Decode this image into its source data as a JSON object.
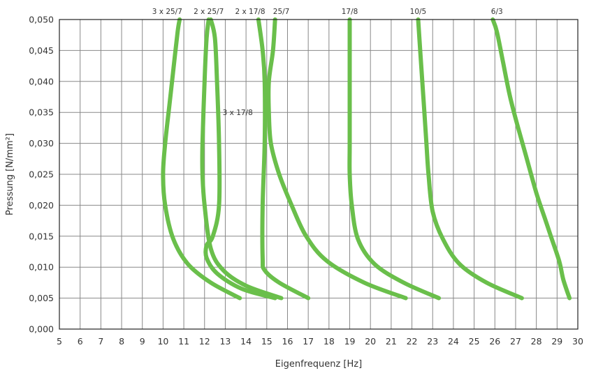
{
  "chart_data": {
    "type": "line",
    "title": "",
    "xlabel": "Eigenfrequenz [Hz]",
    "ylabel": "Pressung [N/mm²]",
    "xlim": [
      5,
      30
    ],
    "ylim": [
      0,
      0.05
    ],
    "x_ticks": [
      5,
      6,
      7,
      8,
      9,
      10,
      11,
      12,
      13,
      14,
      15,
      16,
      17,
      18,
      19,
      20,
      21,
      22,
      23,
      24,
      25,
      26,
      27,
      28,
      29,
      30
    ],
    "x_tick_labels": [
      "5",
      "6",
      "7",
      "8",
      "9",
      "10",
      "11",
      "12",
      "13",
      "14",
      "15",
      "16",
      "17",
      "18",
      "19",
      "20",
      "21",
      "22",
      "23",
      "24",
      "25",
      "26",
      "27",
      "28",
      "29",
      "30"
    ],
    "y_ticks": [
      0,
      0.005,
      0.01,
      0.015,
      0.02,
      0.025,
      0.03,
      0.035,
      0.04,
      0.045,
      0.05
    ],
    "y_tick_labels": [
      "0,000",
      "0,005",
      "0,010",
      "0,015",
      "0,020",
      "0,025",
      "0,030",
      "0,035",
      "0,040",
      "0,045",
      "0,050"
    ],
    "grid": true,
    "line_color": "#6abf4b",
    "series": [
      {
        "name": "3 x 25/7",
        "points": [
          [
            13.7,
            0.005
          ],
          [
            12.3,
            0.0075
          ],
          [
            11.2,
            0.0105
          ],
          [
            10.5,
            0.0145
          ],
          [
            10.1,
            0.02
          ],
          [
            10.0,
            0.025
          ],
          [
            10.1,
            0.03
          ],
          [
            10.3,
            0.036
          ],
          [
            10.5,
            0.042
          ],
          [
            10.7,
            0.048
          ],
          [
            10.8,
            0.05
          ]
        ]
      },
      {
        "name": "3 x 17/8",
        "points": [
          [
            15.4,
            0.005
          ],
          [
            13.8,
            0.0065
          ],
          [
            12.6,
            0.009
          ],
          [
            12.1,
            0.0115
          ],
          [
            12.1,
            0.0135
          ],
          [
            12.4,
            0.015
          ],
          [
            12.7,
            0.02
          ],
          [
            12.7,
            0.03
          ],
          [
            12.6,
            0.04
          ],
          [
            12.5,
            0.047
          ],
          [
            12.3,
            0.05
          ]
        ]
      },
      {
        "name": "2 x 25/7",
        "points": [
          [
            15.7,
            0.005
          ],
          [
            14.0,
            0.007
          ],
          [
            12.9,
            0.0095
          ],
          [
            12.3,
            0.013
          ],
          [
            12.0,
            0.02
          ],
          [
            11.9,
            0.025
          ],
          [
            11.9,
            0.03
          ],
          [
            12.0,
            0.04
          ],
          [
            12.1,
            0.047
          ],
          [
            12.2,
            0.05
          ]
        ]
      },
      {
        "name": "2 x 17/8",
        "points": [
          [
            17.0,
            0.005
          ],
          [
            15.6,
            0.0075
          ],
          [
            14.9,
            0.0095
          ],
          [
            14.8,
            0.0115
          ],
          [
            14.8,
            0.02
          ],
          [
            14.9,
            0.03
          ],
          [
            14.9,
            0.04
          ],
          [
            14.8,
            0.045
          ],
          [
            14.6,
            0.05
          ]
        ]
      },
      {
        "name": "25/7",
        "points": [
          [
            21.7,
            0.005
          ],
          [
            19.7,
            0.0075
          ],
          [
            17.9,
            0.011
          ],
          [
            16.9,
            0.015
          ],
          [
            16.2,
            0.02
          ],
          [
            15.6,
            0.025
          ],
          [
            15.2,
            0.03
          ],
          [
            15.1,
            0.035
          ],
          [
            15.1,
            0.04
          ],
          [
            15.3,
            0.045
          ],
          [
            15.4,
            0.05
          ]
        ]
      },
      {
        "name": "17/8",
        "points": [
          [
            23.3,
            0.005
          ],
          [
            21.6,
            0.0075
          ],
          [
            20.2,
            0.0105
          ],
          [
            19.4,
            0.0145
          ],
          [
            19.1,
            0.02
          ],
          [
            19.0,
            0.025
          ],
          [
            19.0,
            0.03
          ],
          [
            19.0,
            0.04
          ],
          [
            19.0,
            0.05
          ]
        ]
      },
      {
        "name": "10/5",
        "points": [
          [
            27.3,
            0.005
          ],
          [
            25.6,
            0.0075
          ],
          [
            24.3,
            0.0105
          ],
          [
            23.5,
            0.0145
          ],
          [
            23.0,
            0.019
          ],
          [
            22.8,
            0.025
          ],
          [
            22.7,
            0.03
          ],
          [
            22.6,
            0.035
          ],
          [
            22.5,
            0.04
          ],
          [
            22.4,
            0.045
          ],
          [
            22.3,
            0.05
          ]
        ]
      },
      {
        "name": "6/3",
        "points": [
          [
            29.6,
            0.005
          ],
          [
            29.3,
            0.008
          ],
          [
            29.1,
            0.011
          ],
          [
            28.7,
            0.015
          ],
          [
            28.4,
            0.018
          ],
          [
            28.0,
            0.022
          ],
          [
            27.5,
            0.028
          ],
          [
            27.0,
            0.034
          ],
          [
            26.7,
            0.038
          ],
          [
            26.4,
            0.043
          ],
          [
            26.1,
            0.048
          ],
          [
            25.9,
            0.05
          ]
        ]
      }
    ],
    "annotations": [
      {
        "text": "3 x 25/7",
        "x": 10.2,
        "y": 0.05,
        "position": "above"
      },
      {
        "text": "2 x 25/7",
        "x": 12.2,
        "y": 0.05,
        "position": "above"
      },
      {
        "text": "2 x 17/8",
        "x": 14.2,
        "y": 0.05,
        "position": "above"
      },
      {
        "text": "25/7",
        "x": 15.7,
        "y": 0.05,
        "position": "above"
      },
      {
        "text": "17/8",
        "x": 19.0,
        "y": 0.05,
        "position": "above"
      },
      {
        "text": "10/5",
        "x": 22.3,
        "y": 0.05,
        "position": "above"
      },
      {
        "text": "6/3",
        "x": 26.1,
        "y": 0.05,
        "position": "above"
      },
      {
        "text": "3 x 17/8",
        "x": 13.6,
        "y": 0.035,
        "position": "inside"
      }
    ]
  }
}
